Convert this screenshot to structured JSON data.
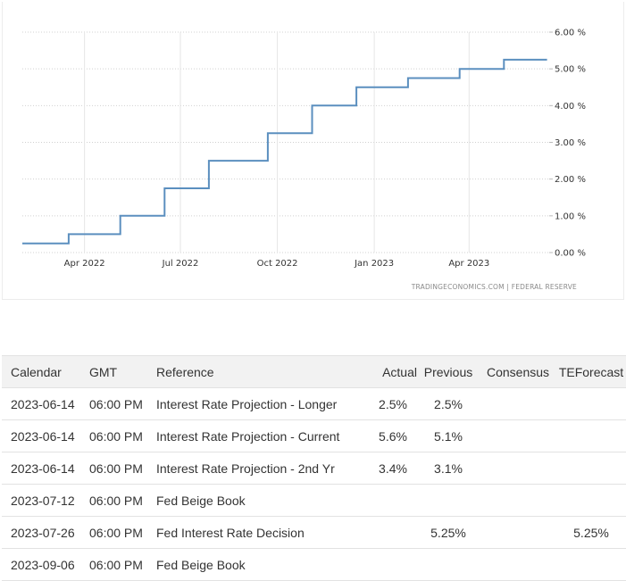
{
  "chart_data": {
    "type": "line",
    "line_style": "step",
    "series": [
      {
        "values": [
          {
            "x": "2022-02-01",
            "y": 0.25
          },
          {
            "x": "2022-03-17",
            "y": 0.5
          },
          {
            "x": "2022-05-05",
            "y": 1.0
          },
          {
            "x": "2022-06-16",
            "y": 1.75
          },
          {
            "x": "2022-07-28",
            "y": 2.5
          },
          {
            "x": "2022-09-22",
            "y": 3.25
          },
          {
            "x": "2022-11-03",
            "y": 4.0
          },
          {
            "x": "2022-12-15",
            "y": 4.5
          },
          {
            "x": "2023-02-02",
            "y": 4.75
          },
          {
            "x": "2023-03-23",
            "y": 5.0
          },
          {
            "x": "2023-05-04",
            "y": 5.25
          },
          {
            "x": "2023-06-14",
            "y": 5.25
          }
        ]
      }
    ],
    "x_ticks": [
      "Apr 2022",
      "Jul 2022",
      "Oct 2022",
      "Jan 2023",
      "Apr 2023"
    ],
    "y_ticks": [
      "0.00 %",
      "1.00 %",
      "2.00 %",
      "3.00 %",
      "4.00 %",
      "5.00 %",
      "6.00 %"
    ],
    "ylim": [
      0,
      6
    ],
    "y_axis_position": "right",
    "grid": true,
    "line_color": "#5b8fbf",
    "source_text": "TRADINGECONOMICS.COM  |  FEDERAL RESERVE"
  },
  "table": {
    "headers": {
      "calendar": "Calendar",
      "gmt": "GMT",
      "reference": "Reference",
      "actual": "Actual",
      "previous": "Previous",
      "consensus": "Consensus",
      "teforecast": "TEForecast"
    },
    "rows": [
      {
        "calendar": "2023-06-14",
        "gmt": "06:00 PM",
        "reference": "Interest Rate Projection - Longer",
        "actual": "2.5%",
        "previous": "2.5%",
        "consensus": "",
        "teforecast": ""
      },
      {
        "calendar": "2023-06-14",
        "gmt": "06:00 PM",
        "reference": "Interest Rate Projection - Current",
        "actual": "5.6%",
        "previous": "5.1%",
        "consensus": "",
        "teforecast": ""
      },
      {
        "calendar": "2023-06-14",
        "gmt": "06:00 PM",
        "reference": "Interest Rate Projection - 2nd Yr",
        "actual": "3.4%",
        "previous": "3.1%",
        "consensus": "",
        "teforecast": ""
      },
      {
        "calendar": "2023-07-12",
        "gmt": "06:00 PM",
        "reference": "Fed Beige Book",
        "actual": "",
        "previous": "",
        "consensus": "",
        "teforecast": ""
      },
      {
        "calendar": "2023-07-26",
        "gmt": "06:00 PM",
        "reference": "Fed Interest Rate Decision",
        "actual": "",
        "previous": "5.25%",
        "consensus": "",
        "teforecast": "5.25%"
      },
      {
        "calendar": "2023-09-06",
        "gmt": "06:00 PM",
        "reference": "Fed Beige Book",
        "actual": "",
        "previous": "",
        "consensus": "",
        "teforecast": ""
      }
    ]
  }
}
